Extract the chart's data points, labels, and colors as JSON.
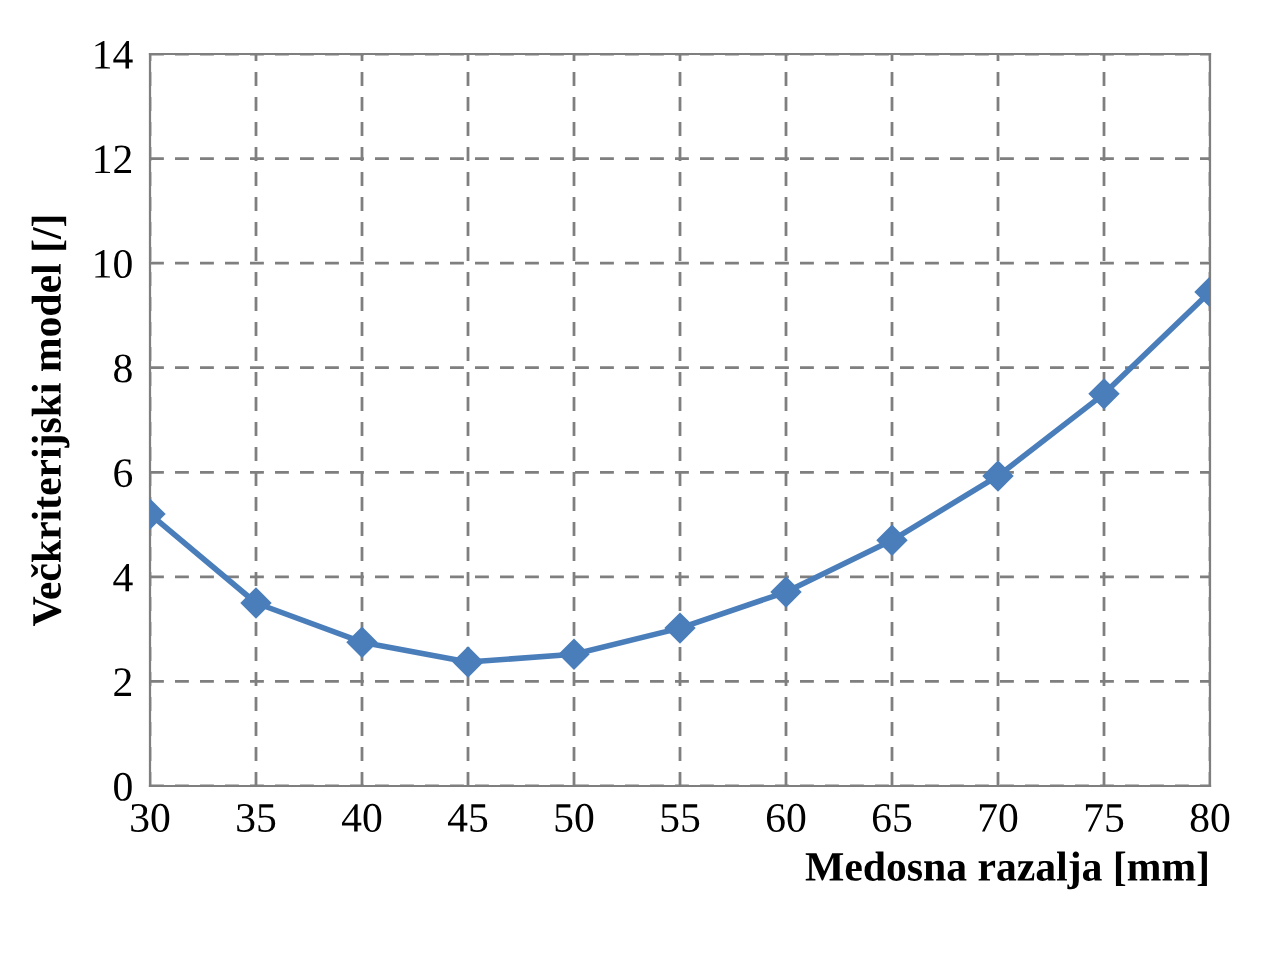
{
  "chart_data": {
    "type": "line",
    "xlabel": "Medosna razalja [mm]",
    "ylabel": "Večkriterijski model [/]",
    "x": [
      30,
      35,
      40,
      45,
      50,
      55,
      60,
      65,
      70,
      75,
      80
    ],
    "series": [
      {
        "color": "#4a7ebb",
        "values": [
          5.2,
          3.5,
          2.75,
          2.37,
          2.52,
          3.02,
          3.71,
          4.7,
          5.93,
          7.5,
          9.45
        ]
      }
    ],
    "xlim": [
      30,
      80
    ],
    "xticks": [
      30,
      35,
      40,
      45,
      50,
      55,
      60,
      65,
      70,
      75,
      80
    ],
    "ylim": [
      0,
      14
    ],
    "yticks": [
      0,
      2,
      4,
      6,
      8,
      10,
      12,
      14
    ],
    "grid": true,
    "marker": "diamond",
    "line_style": "solid"
  }
}
